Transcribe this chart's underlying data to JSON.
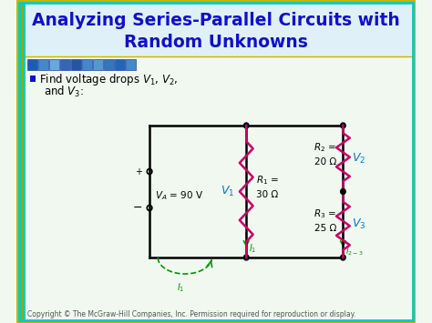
{
  "title_line1": "Analyzing Series-Parallel Circuits with",
  "title_line2": "Random Unknowns",
  "title_color": "#1010cc",
  "header_bg_color": "#dff0f8",
  "header_border_outer": "#c8b400",
  "header_border_inner": "#00cccc",
  "body_bg_color": "#f0f8f0",
  "left_bar_color": "#8ab000",
  "left_bar_accent": "#00cccc",
  "pixel_strip_colors": [
    "#1e5bb5",
    "#4488cc",
    "#66aadd",
    "#3366bb",
    "#2255aa",
    "#4488cc",
    "#5599cc",
    "#3377bb",
    "#2266bb",
    "#4488cc"
  ],
  "circuit_line_color": "#000000",
  "resistor_color": "#cc0066",
  "current_arrow_color": "#009900",
  "V1_color": "#0077cc",
  "V2_color": "#0077cc",
  "V3_color": "#0077cc",
  "copyright_text": "Copyright © The McGraw-Hill Companies, Inc. Permission required for reproduction or display.",
  "copyright_color": "#555555",
  "copyright_fontsize": 5.5
}
